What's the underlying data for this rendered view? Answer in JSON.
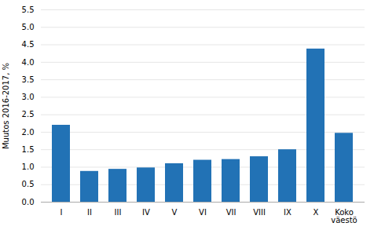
{
  "chart_data": {
    "type": "bar",
    "categories": [
      "I",
      "II",
      "III",
      "IV",
      "V",
      "VI",
      "VII",
      "VIII",
      "IX",
      "X",
      "Koko\nväestö"
    ],
    "values": [
      2.2,
      0.88,
      0.94,
      0.98,
      1.1,
      1.2,
      1.22,
      1.3,
      1.5,
      4.38,
      1.97
    ],
    "color": "#2272b5",
    "ylabel": "Muutos 2016-2017, %",
    "ylim": [
      0.0,
      5.5
    ],
    "yticks": [
      {
        "value": 0,
        "label": "0.0"
      },
      0.5,
      {
        "value": 1,
        "label": "1.0"
      },
      1.5,
      {
        "value": 2,
        "label": "2.0"
      },
      2.5,
      {
        "value": 3,
        "label": "3.0"
      },
      3.5,
      {
        "value": 4,
        "label": "4.0"
      },
      4.5,
      {
        "value": 5,
        "label": "5.0"
      },
      5.5
    ],
    "grid": true
  }
}
